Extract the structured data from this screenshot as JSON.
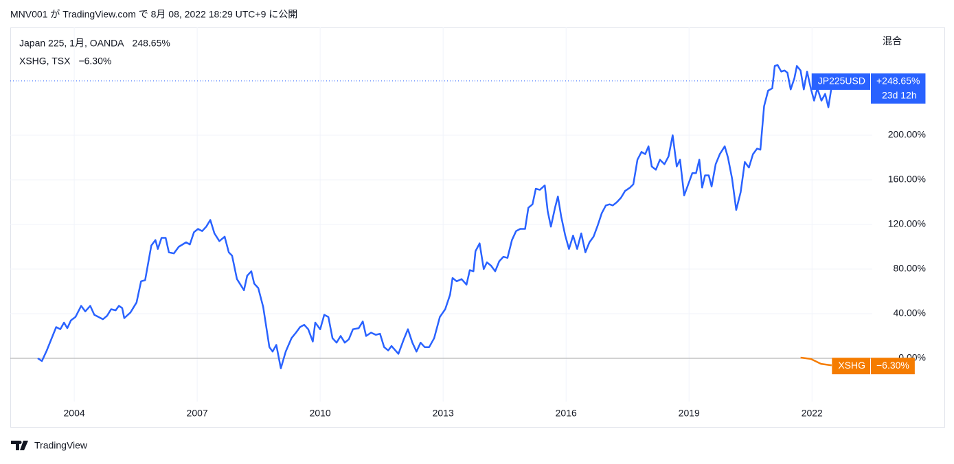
{
  "header": "MNV001 が TradingView.com で 8月 08, 2022 18:29 UTC+9 に公開",
  "footer": "TradingView",
  "chart_data": {
    "type": "line",
    "scale_label": "混合",
    "xlim": [
      2002.44,
      2023.47
    ],
    "xticks": [
      2004,
      2007,
      2010,
      2013,
      2016,
      2019,
      2022
    ],
    "ylim": [
      -38.8,
      296.6
    ],
    "yticks": [
      {
        "value": 0,
        "label": "0.00%"
      },
      {
        "value": 40,
        "label": "40.00%"
      },
      {
        "value": 80,
        "label": "80.00%"
      },
      {
        "value": 120,
        "label": "120.00%"
      },
      {
        "value": 160,
        "label": "160.00%"
      },
      {
        "value": 200,
        "label": "200.00%"
      }
    ],
    "grid": true,
    "series": [
      {
        "name": "Japan 225, 1月, OANDA",
        "symbol": "JP225USD",
        "color": "#2962ff",
        "legend_value": "248.65%",
        "tag_value": "+248.65%",
        "countdown": "23d 12h",
        "x": [
          2003.11,
          2003.21,
          2003.33,
          2003.56,
          2003.66,
          2003.75,
          2003.83,
          2003.92,
          2004.03,
          2004.17,
          2004.27,
          2004.39,
          2004.49,
          2004.7,
          2004.8,
          2004.9,
          2005.01,
          2005.09,
          2005.17,
          2005.22,
          2005.37,
          2005.52,
          2005.63,
          2005.73,
          2005.88,
          2005.98,
          2006.04,
          2006.13,
          2006.23,
          2006.31,
          2006.43,
          2006.55,
          2006.73,
          2006.82,
          2006.92,
          2007.02,
          2007.12,
          2007.22,
          2007.32,
          2007.42,
          2007.54,
          2007.67,
          2007.77,
          2007.85,
          2007.97,
          2008.14,
          2008.22,
          2008.32,
          2008.39,
          2008.49,
          2008.61,
          2008.76,
          2008.84,
          2008.93,
          2009.04,
          2009.16,
          2009.3,
          2009.41,
          2009.51,
          2009.61,
          2009.71,
          2009.82,
          2009.88,
          2010.0,
          2010.1,
          2010.2,
          2010.3,
          2010.4,
          2010.5,
          2010.6,
          2010.7,
          2010.8,
          2010.94,
          2011.04,
          2011.12,
          2011.24,
          2011.36,
          2011.46,
          2011.56,
          2011.66,
          2011.74,
          2011.91,
          2012.04,
          2012.14,
          2012.25,
          2012.35,
          2012.45,
          2012.55,
          2012.66,
          2012.78,
          2012.92,
          2013.05,
          2013.17,
          2013.23,
          2013.33,
          2013.45,
          2013.57,
          2013.65,
          2013.74,
          2013.79,
          2013.89,
          2013.99,
          2014.07,
          2014.17,
          2014.27,
          2014.37,
          2014.47,
          2014.57,
          2014.68,
          2014.78,
          2014.88,
          2015.0,
          2015.08,
          2015.18,
          2015.26,
          2015.36,
          2015.48,
          2015.55,
          2015.63,
          2015.73,
          2015.8,
          2015.88,
          2015.98,
          2016.07,
          2016.17,
          2016.27,
          2016.37,
          2016.47,
          2016.57,
          2016.67,
          2016.77,
          2016.87,
          2016.97,
          2017.06,
          2017.14,
          2017.24,
          2017.34,
          2017.44,
          2017.56,
          2017.64,
          2017.74,
          2017.84,
          2017.93,
          2018.01,
          2018.09,
          2018.19,
          2018.29,
          2018.4,
          2018.5,
          2018.6,
          2018.7,
          2018.78,
          2018.88,
          2018.98,
          2019.08,
          2019.17,
          2019.25,
          2019.32,
          2019.39,
          2019.48,
          2019.55,
          2019.65,
          2019.75,
          2019.87,
          2019.95,
          2020.05,
          2020.15,
          2020.26,
          2020.36,
          2020.46,
          2020.56,
          2020.66,
          2020.74,
          2020.83,
          2020.93,
          2021.03,
          2021.09,
          2021.16,
          2021.25,
          2021.33,
          2021.4,
          2021.48,
          2021.57,
          2021.63,
          2021.72,
          2021.8,
          2021.88,
          2021.97,
          2022.05,
          2022.13,
          2022.23,
          2022.32,
          2022.4,
          2022.48,
          2022.53
        ],
        "values": [
          0,
          -2.5,
          7,
          28,
          26,
          32,
          27,
          34,
          37,
          47,
          42,
          47,
          39,
          35,
          38,
          44,
          43,
          47,
          45,
          36,
          41,
          50,
          69,
          70,
          101,
          106,
          98,
          108,
          108,
          95,
          94,
          100,
          104,
          102,
          113,
          116,
          114,
          118,
          124,
          112,
          105,
          109,
          95,
          92,
          71,
          61,
          74,
          78,
          67,
          63,
          46,
          10,
          6,
          12,
          -9,
          6,
          18,
          23,
          28,
          30,
          26,
          15,
          32,
          26,
          39,
          37,
          18,
          14,
          20,
          14,
          17,
          26,
          27,
          33,
          20,
          23,
          21,
          22,
          10,
          7,
          11,
          4,
          17,
          26,
          14,
          6,
          14,
          10,
          10,
          18,
          37,
          44,
          57,
          72,
          69,
          71,
          66,
          79,
          78,
          96,
          103,
          80,
          86,
          83,
          78,
          87,
          91,
          90,
          106,
          114,
          116,
          116,
          135,
          138,
          152,
          151,
          155,
          132,
          118,
          135,
          145,
          127,
          110,
          98,
          110,
          98,
          112,
          95,
          104,
          109,
          119,
          130,
          137,
          138,
          137,
          140,
          144,
          150,
          153,
          156,
          178,
          185,
          183,
          190,
          172,
          169,
          178,
          174,
          181,
          200,
          172,
          178,
          146,
          156,
          166,
          166,
          178,
          153,
          164,
          164,
          154,
          174,
          183,
          190,
          180,
          161,
          133,
          149,
          176,
          171,
          183,
          188,
          187,
          226,
          240,
          242,
          262,
          263,
          257,
          258,
          256,
          241,
          251,
          262,
          258,
          241,
          257,
          242,
          231,
          242,
          231,
          237,
          225,
          244,
          248.65
        ]
      },
      {
        "name": "XSHG, TSX",
        "symbol": "XSHG",
        "color": "#f57c00",
        "legend_value": "−6.30%",
        "tag_value": "−6.30%",
        "x": [
          2021.72,
          2021.97,
          2022.22,
          2022.48
        ],
        "values": [
          0.6,
          -0.6,
          -5,
          -6.3
        ]
      }
    ]
  }
}
